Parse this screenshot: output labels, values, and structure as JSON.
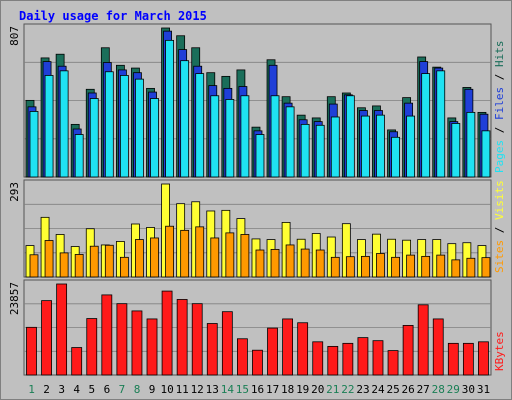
{
  "colors": {
    "background": "#c0c0c0",
    "title": "#0000ff",
    "hits": "#1a6e5a",
    "files": "#1f3fd8",
    "pages": "#1fe2f2",
    "visits": "#ffff33",
    "sites": "#ff9900",
    "kbytes": "#ff1a1a",
    "weekend_day": "#1a7f55",
    "weekday_day": "#1f3fd8",
    "axis_text": "#000000"
  },
  "chart_data": {
    "type": "bar",
    "title": "Daily usage for March 2015",
    "categories": [
      "1",
      "2",
      "3",
      "4",
      "5",
      "6",
      "7",
      "8",
      "9",
      "10",
      "11",
      "12",
      "13",
      "14",
      "15",
      "16",
      "17",
      "18",
      "19",
      "20",
      "21",
      "22",
      "23",
      "24",
      "25",
      "26",
      "27",
      "28",
      "29",
      "30",
      "31"
    ],
    "weekend_days": [
      "1",
      "7",
      "8",
      "14",
      "15",
      "21",
      "22",
      "28",
      "29"
    ],
    "panels": [
      {
        "name": "hits-files-pages",
        "max_label": "807",
        "ymax": 807,
        "legend": [
          {
            "text": "Pages",
            "color": "#1fe2f2"
          },
          {
            "text": "Files",
            "color": "#1f3fd8"
          },
          {
            "text": "Hits",
            "color": "#1a6e5a"
          }
        ],
        "series": [
          {
            "name": "Hits",
            "color": "#1a6e5a",
            "values": [
              415,
              645,
              665,
              285,
              475,
              700,
              605,
              590,
              480,
              807,
              765,
              700,
              565,
              545,
              580,
              270,
              635,
              435,
              335,
              320,
              435,
              455,
              375,
              385,
              255,
              430,
              650,
              595,
              320,
              485,
              350
            ]
          },
          {
            "name": "Files",
            "color": "#1f3fd8",
            "values": [
              380,
              625,
              600,
              260,
              455,
              620,
              580,
              565,
              460,
              790,
              690,
              600,
              495,
              480,
              490,
              250,
              605,
              400,
              310,
              300,
              395,
              445,
              360,
              360,
              245,
              400,
              625,
              590,
              300,
              475,
              340
            ]
          },
          {
            "name": "Pages",
            "color": "#1fe2f2",
            "values": [
              355,
              550,
              575,
              230,
              425,
              570,
              550,
              530,
              425,
              740,
              630,
              560,
              440,
              420,
              440,
              230,
              440,
              380,
              285,
              280,
              325,
              440,
              330,
              335,
              215,
              330,
              560,
              575,
              290,
              350,
              250
            ]
          }
        ]
      },
      {
        "name": "visits-sites",
        "max_label": "293",
        "ymax": 293,
        "legend": [
          {
            "text": "Sites",
            "color": "#ff9900"
          },
          {
            "text": "Visits",
            "color": "#ffff33"
          }
        ],
        "series": [
          {
            "name": "Visits",
            "color": "#ffff33",
            "values": [
              99,
              188,
              134,
              96,
              152,
              101,
              112,
              167,
              156,
              293,
              231,
              237,
              208,
              210,
              184,
              120,
              118,
              172,
              119,
              137,
              126,
              168,
              118,
              135,
              119,
              116,
              118,
              118,
              105,
              108,
              99
            ]
          },
          {
            "name": "Sites",
            "color": "#ff9900",
            "values": [
              70,
              115,
              76,
              71,
              97,
              100,
              62,
              118,
              123,
              160,
              147,
              158,
              123,
              139,
              134,
              85,
              87,
              101,
              88,
              85,
              62,
              64,
              65,
              74,
              62,
              69,
              65,
              69,
              54,
              59,
              61
            ]
          }
        ]
      },
      {
        "name": "kbytes",
        "max_label": "23857",
        "ymax": 23857,
        "legend": [
          {
            "text": "KBytes",
            "color": "#ff1a1a"
          }
        ],
        "series": [
          {
            "name": "KBytes",
            "color": "#ff1a1a",
            "values": [
              12500,
              19500,
              23857,
              7200,
              14800,
              21000,
              18700,
              16800,
              14700,
              22000,
              19800,
              18700,
              13500,
              16600,
              9500,
              6500,
              12300,
              14700,
              13700,
              8700,
              7500,
              8300,
              9800,
              9000,
              6400,
              13000,
              18400,
              14700,
              8300,
              8300,
              8700
            ]
          }
        ]
      }
    ]
  }
}
